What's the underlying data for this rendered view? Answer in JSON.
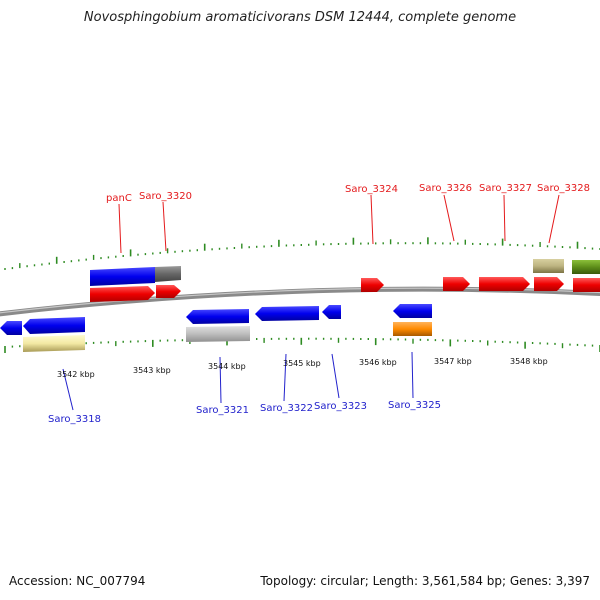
{
  "title": "Novosphingobium aromaticivorans DSM 12444, complete genome",
  "footer": {
    "accession": "Accession: NC_007794",
    "topology": "Topology: circular; Length: 3,561,584 bp; Genes: 3,397"
  },
  "scale_labels": [
    "3542 kbp",
    "3543 kbp",
    "3544 kbp",
    "3545 kbp",
    "3546 kbp",
    "3547 kbp",
    "3548 kbp"
  ],
  "gene_labels_forward": [
    "panC",
    "Saro_3320",
    "Saro_3324",
    "Saro_3326",
    "Saro_3327",
    "Saro_3328"
  ],
  "gene_labels_reverse": [
    "Saro_3318",
    "Saro_3321",
    "Saro_3322",
    "Saro_3323",
    "Saro_3325"
  ],
  "colors": {
    "forward_cds": "#ff0000",
    "reverse_cds": "#0000ee",
    "backbone": "#888888",
    "ticks": "#2e8b22",
    "label_forward": "#e41a1c",
    "label_reverse": "#2222cc"
  }
}
